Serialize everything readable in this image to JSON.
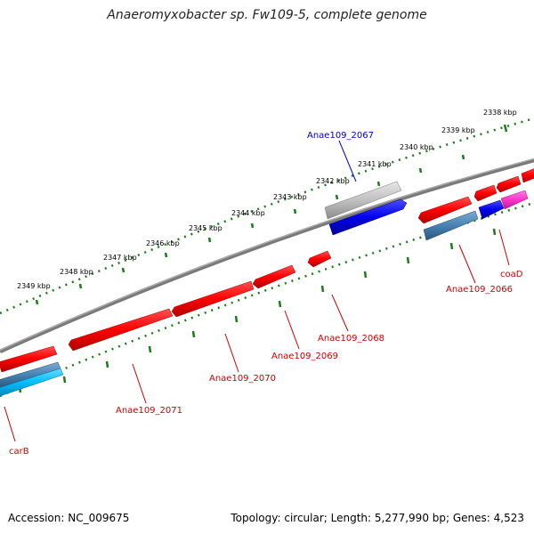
{
  "title": "Anaeromyxobacter sp. Fw109-5, complete genome",
  "footer": {
    "accession": "Accession: NC_009675",
    "summary": "Topology: circular; Length: 5,277,990 bp; Genes: 4,523"
  },
  "colors": {
    "backbone": "#808080",
    "ticks": "#1e7a1e",
    "gene_red": "#ff0000",
    "gene_blue": "#0000ee",
    "gene_steel": "#4682b4",
    "gene_cyan": "#00bfff",
    "gene_gray": "#bdbdbd",
    "gene_magenta": "#ff33cc",
    "label_red": "#cc0000",
    "label_blue": "#0000cc"
  },
  "scale_labels": [
    "2349 kbp",
    "2348 kbp",
    "2347 kbp",
    "2346 kbp",
    "2345 kbp",
    "2344 kbp",
    "2343 kbp",
    "2342 kbp",
    "2341 kbp",
    "2340 kbp",
    "2339 kbp",
    "2338 kbp"
  ],
  "gene_labels": {
    "g2067": "Anae109_2067",
    "g2066": "Anae109_2066",
    "coaD": "coaD",
    "g2068": "Anae109_2068",
    "g2069": "Anae109_2069",
    "g2070": "Anae109_2070",
    "g2071": "Anae109_2071",
    "carB": "carB"
  }
}
